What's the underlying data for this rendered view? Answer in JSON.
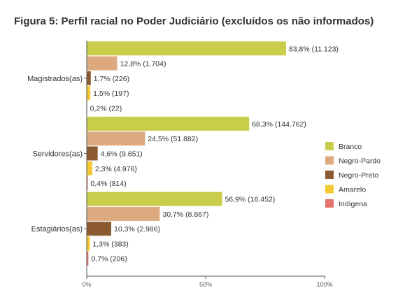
{
  "chart_data": {
    "type": "bar",
    "orientation": "horizontal",
    "title": "Figura 5: Perfil racial no Poder Judiciário (excluídos os não informados)",
    "categories": [
      "Magistrados(as)",
      "Servidores(as)",
      "Estagiários(as)"
    ],
    "series": [
      {
        "name": "Branco",
        "color": "#c9cd4a",
        "values": [
          83.8,
          68.3,
          56.9
        ],
        "labels": [
          "83,8% (11.123)",
          "68,3% (144.762)",
          "56,9% (16.452)"
        ]
      },
      {
        "name": "Negro-Pardo",
        "color": "#dcaa7e",
        "values": [
          12.8,
          24.5,
          30.7
        ],
        "labels": [
          "12,8% (1.704)",
          "24,5% (51.882)",
          "30,7% (8.867)"
        ]
      },
      {
        "name": "Negro-Preto",
        "color": "#8c5a30",
        "values": [
          1.7,
          4.6,
          10.3
        ],
        "labels": [
          "1,7% (226)",
          "4,6% (9.651)",
          "10,3% (2.986)"
        ]
      },
      {
        "name": "Amarelo",
        "color": "#f4c930",
        "values": [
          1.5,
          2.3,
          1.3
        ],
        "labels": [
          "1,5% (197)",
          "2,3% (4.976)",
          "1,3% (383)"
        ]
      },
      {
        "name": "Indígena",
        "color": "#e5736a",
        "values": [
          0.2,
          0.4,
          0.7
        ],
        "labels": [
          "0,2% (22)",
          "0,4% (814)",
          "0,7% (206)"
        ]
      }
    ],
    "xlim": [
      0,
      100
    ],
    "xticks": [
      "0%",
      "50%",
      "100%"
    ],
    "legend_position": "right",
    "grid": false
  }
}
